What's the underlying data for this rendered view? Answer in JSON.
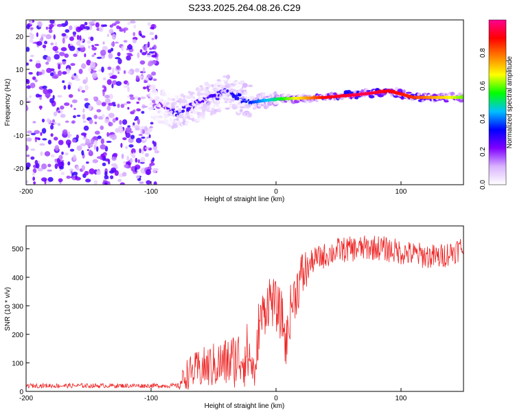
{
  "title": "S233.2025.264.08.26.C29",
  "chart_data": [
    {
      "type": "heatmap",
      "xlabel": "Height of straight line (km)",
      "ylabel": "Frequency (Hz)",
      "xlim": [
        -200,
        150
      ],
      "ylim": [
        -25,
        25
      ],
      "xticks": [
        -200,
        -100,
        0,
        100
      ],
      "yticks": [
        -20,
        -10,
        0,
        10,
        20
      ],
      "colorbar": {
        "label": "Normalized spectral amplitude",
        "range": [
          0,
          1
        ],
        "ticks": [
          "0.0",
          "0.2",
          "0.4",
          "0.6",
          "0.8"
        ],
        "colors": [
          "#ffffff",
          "#d9b3ff",
          "#8000ff",
          "#0000ff",
          "#00c0ff",
          "#00ff00",
          "#ffff00",
          "#ff8000",
          "#ff0000",
          "#ff0090"
        ]
      },
      "ridge": [
        {
          "x": -100,
          "freq": 0,
          "amp": 0.15
        },
        {
          "x": -80,
          "freq": -3,
          "amp": 0.3
        },
        {
          "x": -60,
          "freq": 0,
          "amp": 0.25
        },
        {
          "x": -40,
          "freq": 3,
          "amp": 0.3
        },
        {
          "x": -20,
          "freq": 0,
          "amp": 0.35
        },
        {
          "x": 0,
          "freq": 1,
          "amp": 0.5
        },
        {
          "x": 40,
          "freq": 1.5,
          "amp": 0.9
        },
        {
          "x": 70,
          "freq": 2.5,
          "amp": 0.95
        },
        {
          "x": 90,
          "freq": 3.5,
          "amp": 0.9
        },
        {
          "x": 110,
          "freq": 1.5,
          "amp": 0.85
        },
        {
          "x": 150,
          "freq": 1.5,
          "amp": 0.6
        }
      ]
    },
    {
      "type": "line",
      "xlabel": "Height of straight line (km)",
      "ylabel": "SNR (10 * v/v)",
      "xlim": [
        -200,
        150
      ],
      "ylim": [
        0,
        580
      ],
      "xticks": [
        -200,
        -100,
        0,
        100
      ],
      "yticks": [
        0,
        100,
        200,
        300,
        400,
        500
      ],
      "color": "#ee2222",
      "trend": [
        {
          "x": -200,
          "snr": 20
        },
        {
          "x": -78,
          "snr": 20
        },
        {
          "x": -72,
          "snr": 60
        },
        {
          "x": -60,
          "snr": 80
        },
        {
          "x": -40,
          "snr": 100
        },
        {
          "x": -22,
          "snr": 130
        },
        {
          "x": -16,
          "snr": 50
        },
        {
          "x": -14,
          "snr": 230
        },
        {
          "x": -5,
          "snr": 330
        },
        {
          "x": 5,
          "snr": 260
        },
        {
          "x": 8,
          "snr": 160
        },
        {
          "x": 12,
          "snr": 300
        },
        {
          "x": 20,
          "snr": 400
        },
        {
          "x": 30,
          "snr": 460
        },
        {
          "x": 50,
          "snr": 495
        },
        {
          "x": 80,
          "snr": 505
        },
        {
          "x": 110,
          "snr": 480
        },
        {
          "x": 130,
          "snr": 470
        },
        {
          "x": 150,
          "snr": 505
        }
      ]
    }
  ]
}
